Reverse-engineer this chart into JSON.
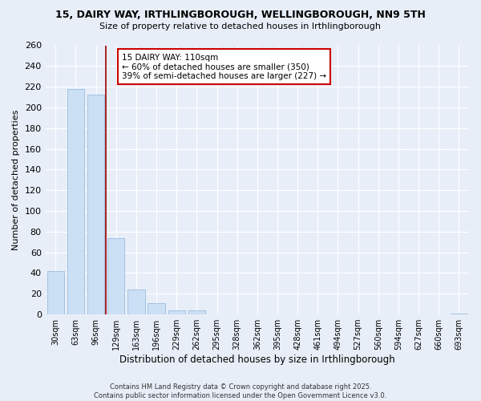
{
  "title": "15, DAIRY WAY, IRTHLINGBOROUGH, WELLINGBOROUGH, NN9 5TH",
  "subtitle": "Size of property relative to detached houses in Irthlingborough",
  "xlabel": "Distribution of detached houses by size in Irthlingborough",
  "ylabel": "Number of detached properties",
  "bar_labels": [
    "30sqm",
    "63sqm",
    "96sqm",
    "129sqm",
    "163sqm",
    "196sqm",
    "229sqm",
    "262sqm",
    "295sqm",
    "328sqm",
    "362sqm",
    "395sqm",
    "428sqm",
    "461sqm",
    "494sqm",
    "527sqm",
    "560sqm",
    "594sqm",
    "627sqm",
    "660sqm",
    "693sqm"
  ],
  "bar_values": [
    42,
    218,
    212,
    74,
    24,
    11,
    4,
    4,
    0,
    0,
    0,
    0,
    0,
    0,
    0,
    0,
    0,
    0,
    0,
    0,
    1
  ],
  "bar_color": "#cce0f5",
  "bar_edge_color": "#99bbdd",
  "vline_x": 2.5,
  "vline_color": "#990000",
  "ylim": [
    0,
    260
  ],
  "yticks": [
    0,
    20,
    40,
    60,
    80,
    100,
    120,
    140,
    160,
    180,
    200,
    220,
    240,
    260
  ],
  "annotation_title": "15 DAIRY WAY: 110sqm",
  "annotation_line1": "← 60% of detached houses are smaller (350)",
  "annotation_line2": "39% of semi-detached houses are larger (227) →",
  "background_color": "#e8eef8",
  "grid_color": "#ffffff",
  "footer_line1": "Contains HM Land Registry data © Crown copyright and database right 2025.",
  "footer_line2": "Contains public sector information licensed under the Open Government Licence v3.0."
}
